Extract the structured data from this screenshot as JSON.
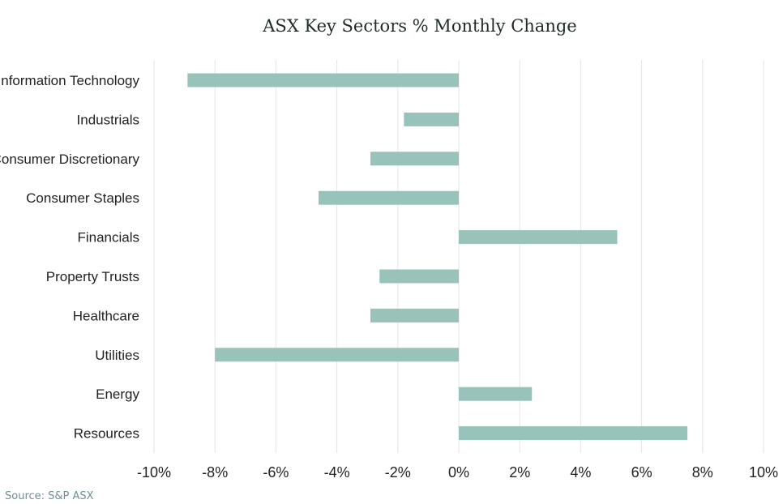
{
  "chart_data": {
    "type": "bar",
    "orientation": "horizontal",
    "title": "ASX Key Sectors % Monthly Change",
    "xlabel": "",
    "ylabel": "",
    "categories": [
      "Information Technology",
      "Industrials",
      "Consumer Discretionary",
      "Consumer Staples",
      "Financials",
      "Property Trusts",
      "Healthcare",
      "Utilities",
      "Energy",
      "Resources"
    ],
    "values": [
      -8.9,
      -1.8,
      -2.9,
      -4.6,
      5.2,
      -2.6,
      -2.9,
      -8.0,
      2.4,
      7.5
    ],
    "xlim": [
      -10,
      10
    ],
    "xticks": [
      -10,
      -8,
      -6,
      -4,
      -2,
      0,
      2,
      4,
      6,
      8,
      10
    ],
    "tick_labels": [
      "-10%",
      "-8%",
      "-6%",
      "-4%",
      "-2%",
      "0%",
      "2%",
      "4%",
      "6%",
      "8%",
      "10%"
    ],
    "grid": "vertical",
    "legend": "none",
    "bar_color": "#98c3ba",
    "grid_color": "#e2e5e5"
  },
  "footer": {
    "source": "Source: S&P ASX"
  }
}
